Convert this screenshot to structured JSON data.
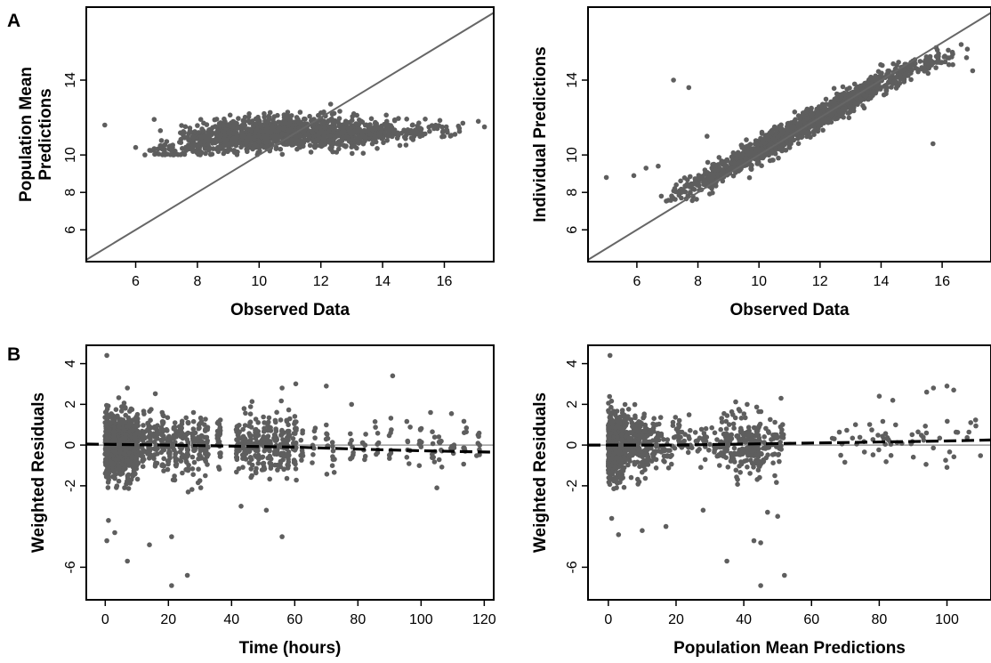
{
  "panel_labels": {
    "a": "A",
    "b": "B"
  },
  "colors": {
    "points": "#5e5e5e",
    "identity_line": "#666666",
    "zero_line": "#9a9a9a",
    "trend_line": "#000000"
  },
  "chart_data": [
    {
      "id": "a-left",
      "type": "scatter",
      "xlabel": "Observed Data",
      "ylabel_lines": [
        "Population Mean",
        "Predictions"
      ],
      "xlim": [
        4.4,
        17.6
      ],
      "ylim": [
        4.3,
        17.9
      ],
      "xticks": [
        6,
        8,
        10,
        12,
        14,
        16
      ],
      "yticks": [
        6,
        8,
        10,
        14
      ],
      "xtick_labels": [
        "6",
        "8",
        "10",
        "12",
        "14",
        "16"
      ],
      "ytick_labels": [
        "6",
        "8",
        "10",
        "14"
      ],
      "reference_line": {
        "kind": "identity",
        "style": "solid"
      },
      "outliers": [
        [
          5.0,
          11.6
        ],
        [
          6.0,
          10.4
        ],
        [
          6.3,
          10.0
        ],
        [
          17.1,
          11.8
        ],
        [
          17.3,
          11.5
        ],
        [
          16.6,
          11.7
        ],
        [
          6.6,
          11.9
        ],
        [
          6.8,
          11.3
        ]
      ],
      "cloud": [
        [
          7.0,
          10.2,
          0.4,
          0.5,
          40
        ],
        [
          8.0,
          10.7,
          0.6,
          0.8,
          130
        ],
        [
          9.0,
          11.0,
          0.6,
          0.8,
          200
        ],
        [
          10.0,
          11.1,
          0.6,
          0.8,
          240
        ],
        [
          11.0,
          11.2,
          0.6,
          0.8,
          240
        ],
        [
          12.0,
          11.2,
          0.6,
          0.8,
          220
        ],
        [
          13.0,
          11.2,
          0.6,
          0.7,
          160
        ],
        [
          14.0,
          11.2,
          0.5,
          0.6,
          90
        ],
        [
          15.0,
          11.2,
          0.5,
          0.5,
          50
        ],
        [
          16.0,
          11.3,
          0.4,
          0.4,
          20
        ]
      ],
      "floor": 10.0
    },
    {
      "id": "a-right",
      "type": "scatter",
      "xlabel": "Observed Data",
      "ylabel_lines": [
        "Individual Predictions"
      ],
      "xlim": [
        4.4,
        17.6
      ],
      "ylim": [
        4.3,
        17.9
      ],
      "xticks": [
        6,
        8,
        10,
        12,
        14,
        16
      ],
      "yticks": [
        6,
        8,
        10,
        14
      ],
      "xtick_labels": [
        "6",
        "8",
        "10",
        "12",
        "14",
        "16"
      ],
      "ytick_labels": [
        "6",
        "8",
        "10",
        "14"
      ],
      "reference_line": {
        "kind": "identity",
        "style": "solid"
      },
      "outliers": [
        [
          5.0,
          8.8
        ],
        [
          5.9,
          8.9
        ],
        [
          6.3,
          9.3
        ],
        [
          6.7,
          9.4
        ],
        [
          7.2,
          14.0
        ],
        [
          7.7,
          13.6
        ],
        [
          8.3,
          11.0
        ],
        [
          15.7,
          10.6
        ],
        [
          17.0,
          14.5
        ],
        [
          16.8,
          15.2
        ],
        [
          16.2,
          15.6
        ],
        [
          6.8,
          7.8
        ]
      ],
      "cloud": [
        [
          7.5,
          8.2,
          0.5,
          0.5,
          40
        ],
        [
          8.5,
          8.9,
          0.6,
          0.6,
          130
        ],
        [
          9.5,
          9.8,
          0.6,
          0.6,
          220
        ],
        [
          10.5,
          10.7,
          0.6,
          0.6,
          260
        ],
        [
          11.5,
          11.6,
          0.6,
          0.6,
          260
        ],
        [
          12.5,
          12.5,
          0.6,
          0.6,
          230
        ],
        [
          13.5,
          13.4,
          0.6,
          0.6,
          160
        ],
        [
          14.5,
          14.2,
          0.6,
          0.6,
          100
        ],
        [
          15.5,
          14.8,
          0.5,
          0.5,
          40
        ],
        [
          16.3,
          15.3,
          0.4,
          0.4,
          15
        ]
      ]
    },
    {
      "id": "b-left",
      "type": "scatter",
      "xlabel": "Time (hours)",
      "ylabel_lines": [
        "Weighted Residuals"
      ],
      "xlim": [
        -6,
        123
      ],
      "ylim": [
        -7.6,
        4.9
      ],
      "xticks": [
        0,
        20,
        40,
        60,
        80,
        100,
        120
      ],
      "yticks": [
        -6,
        -2,
        0,
        2,
        4
      ],
      "xtick_labels": [
        "0",
        "20",
        "40",
        "60",
        "80",
        "100",
        "120"
      ],
      "ytick_labels": [
        "-6",
        "-2",
        "0",
        "2",
        "4"
      ],
      "reference_line": {
        "kind": "zero",
        "style": "solid"
      },
      "trend": {
        "style": "dashed",
        "points": [
          [
            -6,
            0.05
          ],
          [
            20,
            0.0
          ],
          [
            40,
            -0.05
          ],
          [
            60,
            -0.1
          ],
          [
            80,
            -0.2
          ],
          [
            100,
            -0.28
          ],
          [
            123,
            -0.35
          ]
        ]
      },
      "outliers": [
        [
          0.5,
          4.4
        ],
        [
          0.5,
          -4.7
        ],
        [
          1.0,
          -3.7
        ],
        [
          3.0,
          -4.3
        ],
        [
          7.0,
          2.8
        ],
        [
          7.0,
          -5.7
        ],
        [
          14.0,
          -4.9
        ],
        [
          21.0,
          -6.9
        ],
        [
          21.0,
          -4.5
        ],
        [
          26.0,
          -6.4
        ],
        [
          43.0,
          -3.0
        ],
        [
          51.0,
          -3.2
        ],
        [
          56.0,
          -4.5
        ],
        [
          56.0,
          2.8
        ],
        [
          70.0,
          2.9
        ],
        [
          91.0,
          3.4
        ],
        [
          78.0,
          2.0
        ],
        [
          103.0,
          1.6
        ],
        [
          105.0,
          -2.1
        ],
        [
          114.0,
          -0.3
        ]
      ],
      "times": [
        0.5,
        1,
        2,
        3,
        4,
        5,
        6,
        7,
        8,
        9,
        10,
        12,
        14,
        16,
        18,
        20,
        22,
        24,
        26,
        28,
        30,
        32,
        36,
        42,
        44,
        46,
        48,
        50,
        52,
        54,
        56,
        58,
        60,
        62,
        66,
        70,
        72,
        78,
        82,
        86,
        90,
        96,
        100,
        104,
        106,
        110,
        114,
        118
      ],
      "residual_sd": 0.9
    },
    {
      "id": "b-right",
      "type": "scatter",
      "xlabel": "Population Mean Predictions",
      "ylabel_lines": [
        "Weighted Residuals"
      ],
      "xlim": [
        -6,
        113
      ],
      "ylim": [
        -7.6,
        4.9
      ],
      "xticks": [
        0,
        20,
        40,
        60,
        80,
        100
      ],
      "yticks": [
        -6,
        -2,
        0,
        2,
        4
      ],
      "xtick_labels": [
        "0",
        "20",
        "40",
        "60",
        "80",
        "100"
      ],
      "ytick_labels": [
        "-6",
        "-2",
        "0",
        "2",
        "4"
      ],
      "reference_line": {
        "kind": "zero",
        "style": "solid"
      },
      "trend": {
        "style": "dashed",
        "points": [
          [
            -6,
            0.0
          ],
          [
            20,
            0.0
          ],
          [
            40,
            0.05
          ],
          [
            60,
            0.1
          ],
          [
            80,
            0.15
          ],
          [
            100,
            0.2
          ],
          [
            113,
            0.25
          ]
        ]
      },
      "outliers": [
        [
          0.5,
          4.4
        ],
        [
          1.0,
          -3.6
        ],
        [
          3.0,
          -4.4
        ],
        [
          10.0,
          -4.2
        ],
        [
          17.0,
          -4.0
        ],
        [
          28.0,
          -3.2
        ],
        [
          35.0,
          -5.7
        ],
        [
          43.0,
          -4.7
        ],
        [
          45.0,
          -6.9
        ],
        [
          45.0,
          -4.8
        ],
        [
          52.0,
          -6.4
        ],
        [
          47.0,
          -3.3
        ],
        [
          50.0,
          -3.5
        ],
        [
          41.0,
          2.0
        ],
        [
          51.0,
          2.3
        ],
        [
          80.0,
          2.4
        ],
        [
          84.0,
          2.2
        ],
        [
          94.0,
          2.6
        ],
        [
          96.0,
          2.8
        ],
        [
          100.0,
          2.9
        ],
        [
          102.0,
          2.7
        ],
        [
          73.0,
          1.0
        ],
        [
          107.0,
          1.1
        ]
      ],
      "clusters": [
        [
          0,
          5,
          0.0,
          1.1,
          420
        ],
        [
          5,
          12,
          0.1,
          0.9,
          200
        ],
        [
          12,
          22,
          0.2,
          0.7,
          90
        ],
        [
          22,
          32,
          0.0,
          0.6,
          40
        ],
        [
          32,
          46,
          0.0,
          0.9,
          200
        ],
        [
          46,
          52,
          0.0,
          0.8,
          45
        ],
        [
          66,
          80,
          0.0,
          0.6,
          18
        ],
        [
          80,
          92,
          0.1,
          0.8,
          20
        ],
        [
          92,
          110,
          0.3,
          0.9,
          20
        ]
      ]
    }
  ]
}
